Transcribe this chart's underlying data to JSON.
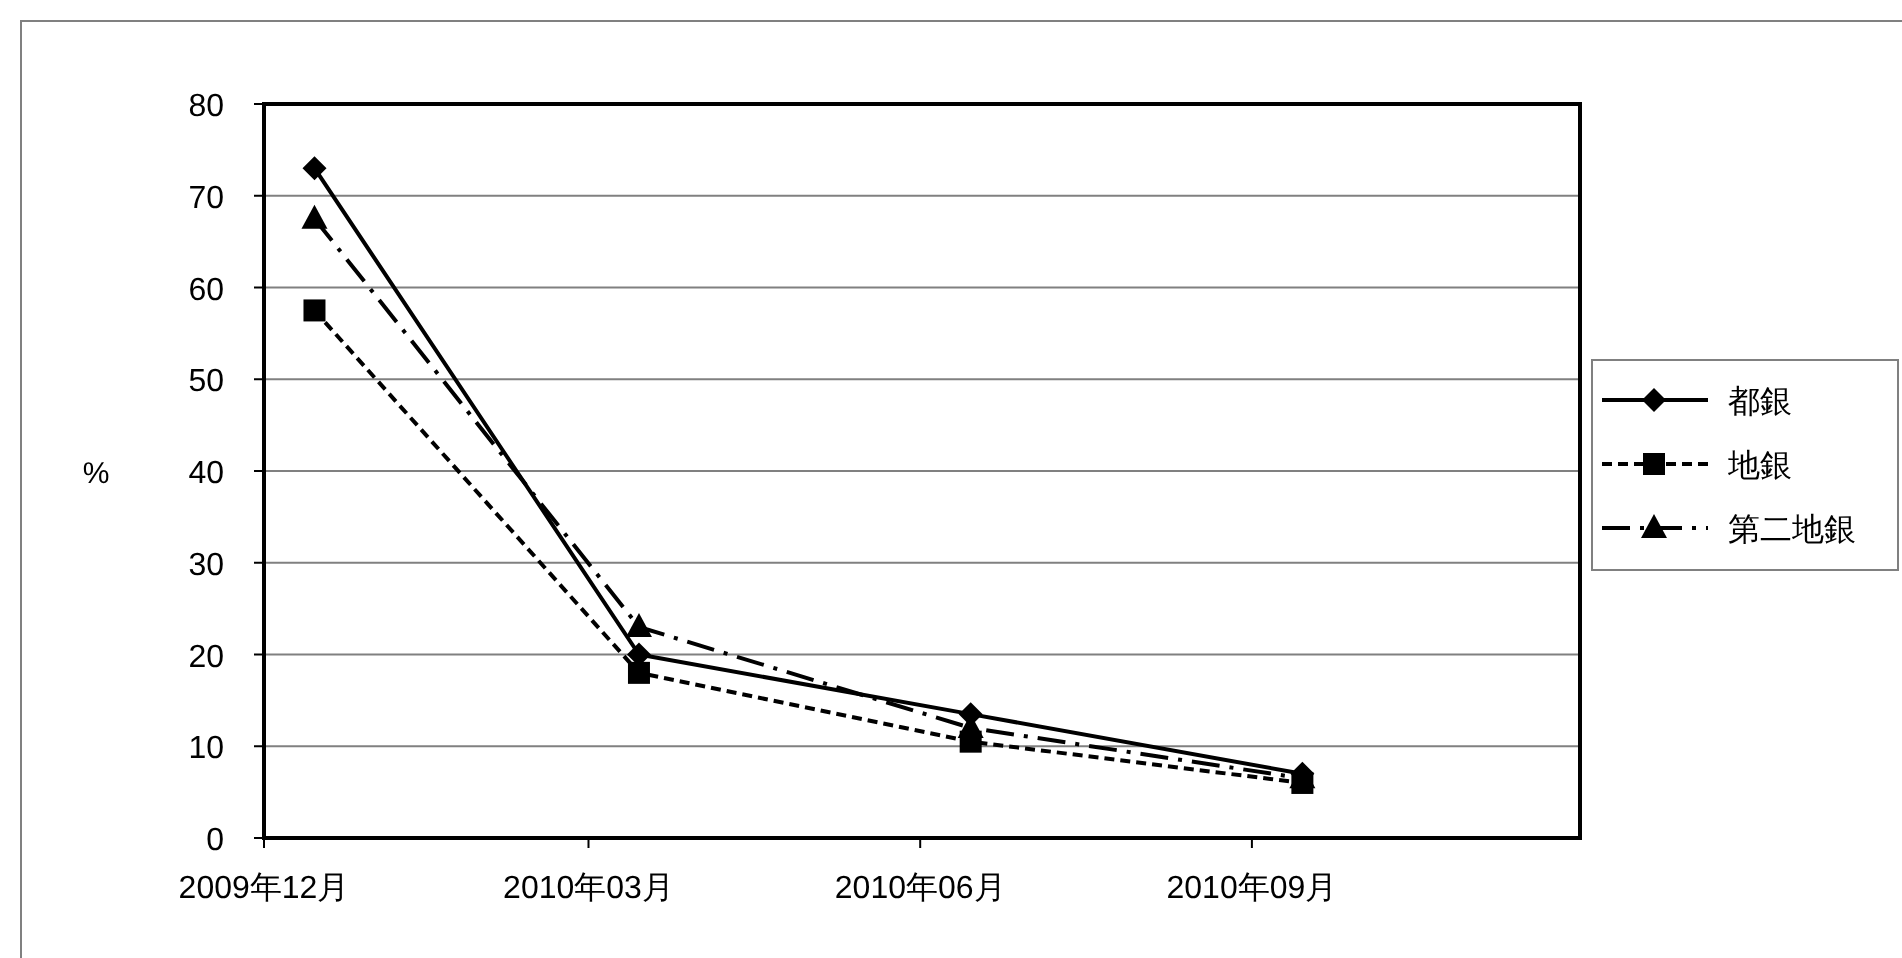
{
  "chart_data": {
    "type": "line",
    "ylabel": "%",
    "x": [
      "2009-12-15",
      "2010-03-15",
      "2010-06-15",
      "2010-09-15"
    ],
    "series": [
      {
        "name": "都銀",
        "color": "#000000",
        "marker": "diamond",
        "line_style": "solid",
        "values": [
          73,
          20,
          13.5,
          7
        ]
      },
      {
        "name": "地銀",
        "color": "#000000",
        "marker": "square",
        "line_style": "dashed",
        "values": [
          57.5,
          18,
          10.5,
          6
        ]
      },
      {
        "name": "第二地銀",
        "color": "#000000",
        "marker": "triangle",
        "line_style": "dashdot",
        "values": [
          67.5,
          23,
          12,
          6.5
        ]
      }
    ],
    "xlim": [
      "2009-12-01",
      "2010-12-01"
    ],
    "xticks": [
      {
        "value": "2009-12-01",
        "label": "2009年12月"
      },
      {
        "value": "2010-03-01",
        "label": "2010年03月"
      },
      {
        "value": "2010-06-01",
        "label": "2010年06月"
      },
      {
        "value": "2010-09-01",
        "label": "2010年09月"
      }
    ],
    "ylim": [
      0,
      80
    ],
    "yticks": [
      0,
      10,
      20,
      30,
      40,
      50,
      60,
      70,
      80
    ],
    "grid": "y",
    "legend": "right"
  }
}
